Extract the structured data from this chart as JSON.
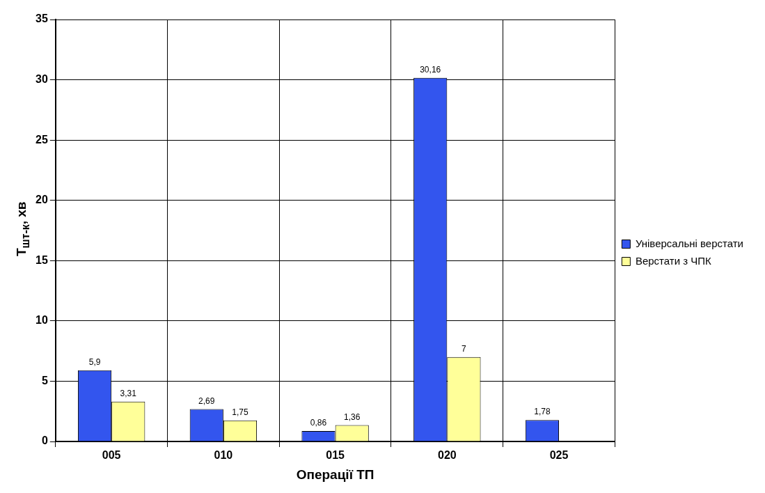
{
  "chart_data": {
    "type": "bar",
    "xlabel": "Операції ТП",
    "ylabel": "T$_{шт-к}$, хв",
    "categories": [
      "005",
      "010",
      "015",
      "020",
      "025"
    ],
    "series": [
      {
        "name": "Універсальні верстати",
        "color": "#3355ee",
        "values": [
          5.9,
          2.69,
          0.86,
          30.16,
          1.78
        ],
        "value_labels": [
          "5,9",
          "2,69",
          "0,86",
          "30,16",
          "1,78"
        ]
      },
      {
        "name": "Верстати з ЧПК",
        "color": "#ffff99",
        "values": [
          3.31,
          1.75,
          1.36,
          7,
          null
        ],
        "value_labels": [
          "3,31",
          "1,75",
          "1,36",
          "7",
          null
        ]
      }
    ],
    "ylim": [
      0,
      35
    ],
    "yticks": [
      0,
      5,
      10,
      15,
      20,
      25,
      30,
      35
    ],
    "grid": true,
    "legend": "right"
  }
}
